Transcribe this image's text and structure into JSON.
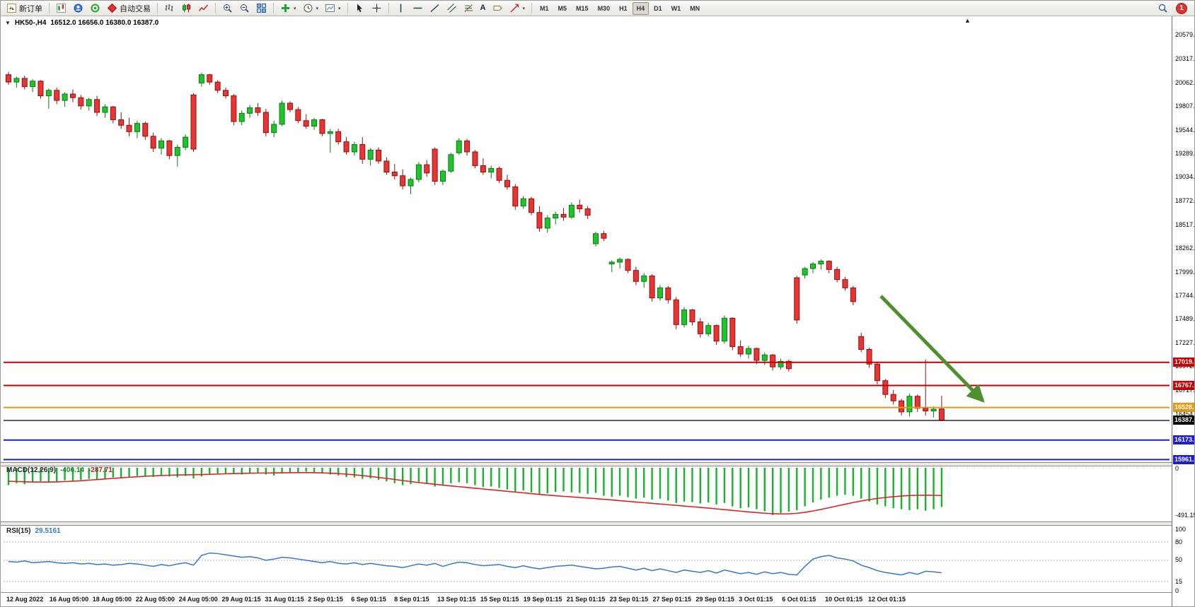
{
  "toolbar": {
    "new_order": "新订单",
    "auto_trading": "自动交易",
    "timeframes": [
      "M1",
      "M5",
      "M15",
      "M30",
      "H1",
      "H4",
      "D1",
      "W1",
      "MN"
    ],
    "active_timeframe": "H4",
    "notification_count": "1"
  },
  "icons": {
    "collapse": "▼",
    "shift_marker": "▲",
    "caret": "▾",
    "text_tool": "A"
  },
  "chart": {
    "symbol_period": "HK50-,H4",
    "ohlc": "16512.0 16656.0 16380.0 16387.0"
  },
  "price_axis_labels": [
    "20579.5",
    "20317.0",
    "20062.0",
    "19807.0",
    "19544.5",
    "19289.5",
    "19034.5",
    "18772.0",
    "18517.0",
    "18262.0",
    "17999.5",
    "17744.5",
    "17489.5",
    "17227.0",
    "16972.0",
    "16717.0",
    "16454.5"
  ],
  "price_lines": [
    {
      "label": "17019.7",
      "price": 17019.7,
      "color": "#c40000",
      "width": 2
    },
    {
      "label": "16767.5",
      "price": 16767.5,
      "color": "#c40000",
      "width": 2
    },
    {
      "label": "16528.6",
      "price": 16528.6,
      "color": "#e5980f",
      "width": 2
    },
    {
      "label": "16387.0",
      "price": 16387.0,
      "color": "#000000",
      "width": 1.2
    },
    {
      "label": "16173.7",
      "price": 16173.7,
      "color": "#1d1dd0",
      "width": 2
    },
    {
      "label": "15961.0",
      "price": 15961.0,
      "color": "#1d1dd0",
      "width": 2
    }
  ],
  "chart_data": {
    "type": "candlestick",
    "symbol": "HK50-",
    "period": "H4",
    "ylim": [
      15910,
      20740
    ],
    "up_color": "#1fc32a",
    "down_color": "#e93434",
    "candles": [
      [
        20150,
        20180,
        20040,
        20070
      ],
      [
        20070,
        20130,
        20010,
        20110
      ],
      [
        20110,
        20140,
        19990,
        20020
      ],
      [
        20020,
        20100,
        19960,
        20080
      ],
      [
        20080,
        20090,
        19890,
        19920
      ],
      [
        19920,
        20000,
        19780,
        19980
      ],
      [
        19980,
        20010,
        19830,
        19870
      ],
      [
        19870,
        19960,
        19800,
        19940
      ],
      [
        19940,
        19990,
        19850,
        19900
      ],
      [
        19900,
        19930,
        19770,
        19810
      ],
      [
        19810,
        19900,
        19760,
        19880
      ],
      [
        19880,
        19920,
        19700,
        19740
      ],
      [
        19740,
        19830,
        19680,
        19800
      ],
      [
        19800,
        19810,
        19620,
        19660
      ],
      [
        19660,
        19740,
        19560,
        19600
      ],
      [
        19600,
        19680,
        19480,
        19530
      ],
      [
        19530,
        19650,
        19460,
        19620
      ],
      [
        19620,
        19640,
        19440,
        19480
      ],
      [
        19480,
        19520,
        19310,
        19350
      ],
      [
        19350,
        19460,
        19280,
        19430
      ],
      [
        19430,
        19440,
        19230,
        19270
      ],
      [
        19270,
        19390,
        19150,
        19360
      ],
      [
        19360,
        19500,
        19330,
        19470
      ],
      [
        19930,
        19950,
        19310,
        19340
      ],
      [
        20060,
        20170,
        20020,
        20150
      ],
      [
        20150,
        20160,
        20040,
        20070
      ],
      [
        20070,
        20090,
        19950,
        19980
      ],
      [
        19980,
        20010,
        19890,
        19920
      ],
      [
        19920,
        19940,
        19600,
        19640
      ],
      [
        19640,
        19760,
        19600,
        19730
      ],
      [
        19730,
        19820,
        19680,
        19790
      ],
      [
        19790,
        19840,
        19700,
        19740
      ],
      [
        19740,
        19780,
        19480,
        19520
      ],
      [
        19520,
        19650,
        19470,
        19610
      ],
      [
        19610,
        19870,
        19590,
        19840
      ],
      [
        19840,
        19860,
        19740,
        19770
      ],
      [
        19770,
        19800,
        19620,
        19650
      ],
      [
        19650,
        19720,
        19560,
        19590
      ],
      [
        19590,
        19680,
        19550,
        19660
      ],
      [
        19660,
        19670,
        19480,
        19510
      ],
      [
        19510,
        19560,
        19300,
        19530
      ],
      [
        19530,
        19560,
        19390,
        19420
      ],
      [
        19420,
        19470,
        19280,
        19310
      ],
      [
        19310,
        19420,
        19270,
        19390
      ],
      [
        19390,
        19470,
        19180,
        19230
      ],
      [
        19230,
        19350,
        19160,
        19330
      ],
      [
        19330,
        19360,
        19180,
        19210
      ],
      [
        19210,
        19250,
        19060,
        19090
      ],
      [
        19090,
        19180,
        19010,
        19050
      ],
      [
        19050,
        19120,
        18900,
        18940
      ],
      [
        18940,
        19030,
        18850,
        19010
      ],
      [
        19010,
        19200,
        18980,
        19170
      ],
      [
        19170,
        19220,
        19040,
        19080
      ],
      [
        19340,
        19360,
        18950,
        18990
      ],
      [
        18990,
        19120,
        18950,
        19100
      ],
      [
        19100,
        19300,
        19080,
        19280
      ],
      [
        19300,
        19460,
        19280,
        19430
      ],
      [
        19430,
        19450,
        19270,
        19310
      ],
      [
        19310,
        19330,
        19130,
        19160
      ],
      [
        19160,
        19240,
        19060,
        19090
      ],
      [
        19090,
        19160,
        19020,
        19130
      ],
      [
        19130,
        19150,
        18970,
        19000
      ],
      [
        19000,
        19060,
        18900,
        18930
      ],
      [
        18930,
        18960,
        18680,
        18720
      ],
      [
        18720,
        18830,
        18690,
        18800
      ],
      [
        18800,
        18820,
        18620,
        18650
      ],
      [
        18650,
        18720,
        18440,
        18480
      ],
      [
        18480,
        18620,
        18430,
        18590
      ],
      [
        18590,
        18660,
        18520,
        18630
      ],
      [
        18630,
        18700,
        18560,
        18600
      ],
      [
        18600,
        18760,
        18580,
        18730
      ],
      [
        18730,
        18790,
        18650,
        18690
      ],
      [
        18690,
        18720,
        18580,
        18620
      ],
      [
        18310,
        18440,
        18280,
        18420
      ],
      [
        18420,
        18450,
        18340,
        18370
      ],
      [
        18090,
        18130,
        18000,
        18110
      ],
      [
        18110,
        18160,
        18040,
        18140
      ],
      [
        18140,
        18150,
        17990,
        18020
      ],
      [
        18020,
        18060,
        17860,
        17900
      ],
      [
        17900,
        17990,
        17830,
        17960
      ],
      [
        17960,
        17980,
        17680,
        17720
      ],
      [
        17720,
        17860,
        17690,
        17830
      ],
      [
        17830,
        17850,
        17660,
        17700
      ],
      [
        17700,
        17730,
        17380,
        17430
      ],
      [
        17430,
        17620,
        17400,
        17590
      ],
      [
        17590,
        17600,
        17420,
        17460
      ],
      [
        17460,
        17500,
        17290,
        17330
      ],
      [
        17330,
        17450,
        17300,
        17420
      ],
      [
        17420,
        17430,
        17210,
        17250
      ],
      [
        17250,
        17530,
        17220,
        17500
      ],
      [
        17500,
        17510,
        17150,
        17190
      ],
      [
        17190,
        17260,
        17080,
        17110
      ],
      [
        17110,
        17200,
        17060,
        17170
      ],
      [
        17170,
        17180,
        17000,
        17040
      ],
      [
        17040,
        17130,
        16990,
        17100
      ],
      [
        17100,
        17110,
        16930,
        16970
      ],
      [
        16970,
        17060,
        16940,
        17030
      ],
      [
        17030,
        17050,
        16920,
        16950
      ],
      [
        17940,
        17960,
        17440,
        17480
      ],
      [
        17970,
        18060,
        17930,
        18040
      ],
      [
        18040,
        18110,
        17990,
        18090
      ],
      [
        18090,
        18140,
        18030,
        18120
      ],
      [
        18120,
        18130,
        17990,
        18030
      ],
      [
        18030,
        18060,
        17890,
        17920
      ],
      [
        17920,
        17950,
        17800,
        17830
      ],
      [
        17830,
        17850,
        17640,
        17680
      ],
      [
        17300,
        17340,
        17130,
        17160
      ],
      [
        17160,
        17180,
        16960,
        17000
      ],
      [
        17000,
        17030,
        16780,
        16820
      ],
      [
        16820,
        16840,
        16630,
        16670
      ],
      [
        16670,
        16720,
        16560,
        16600
      ],
      [
        16600,
        16620,
        16440,
        16480
      ],
      [
        16480,
        16680,
        16430,
        16650
      ],
      [
        16650,
        16670,
        16480,
        16520
      ],
      [
        16520,
        17050,
        16440,
        16490
      ],
      [
        16490,
        16540,
        16420,
        16510
      ],
      [
        16512,
        16656,
        16380,
        16387
      ]
    ],
    "time_labels": [
      "12 Aug 2022",
      "16 Aug 05:00",
      "18 Aug 05:00",
      "22 Aug 05:00",
      "24 Aug 05:00",
      "29 Aug 01:15",
      "31 Aug 01:15",
      "2 Sep 01:15",
      "6 Sep 01:15",
      "8 Sep 01:15",
      "13 Sep 01:15",
      "15 Sep 01:15",
      "19 Sep 01:15",
      "21 Sep 01:15",
      "23 Sep 01:15",
      "27 Sep 01:15",
      "29 Sep 01:15",
      "3 Oct 01:15",
      "6 Oct 01:15",
      "10 Oct 01:15",
      "12 Oct 01:15"
    ],
    "macd": {
      "name": "MACD(12,26,9)",
      "value": "-406.14",
      "signal_value": "-287.71",
      "scale_max": "0",
      "scale_min": "-491.15",
      "color": "#18b32c",
      "signal_color": "#e02222",
      "histogram": [
        -180,
        -160,
        -170,
        -150,
        -140,
        -155,
        -145,
        -130,
        -140,
        -125,
        -115,
        -120,
        -110,
        -100,
        -105,
        -95,
        -85,
        -90,
        -95,
        -80,
        -90,
        -100,
        -85,
        -110,
        -90,
        -70,
        -60,
        -55,
        -65,
        -70,
        -60,
        -55,
        -70,
        -80,
        -60,
        -50,
        -45,
        -40,
        -45,
        -55,
        -70,
        -80,
        -95,
        -100,
        -115,
        -110,
        -125,
        -140,
        -160,
        -180,
        -170,
        -155,
        -165,
        -195,
        -180,
        -160,
        -150,
        -160,
        -180,
        -200,
        -195,
        -210,
        -225,
        -250,
        -235,
        -255,
        -280,
        -265,
        -250,
        -245,
        -255,
        -260,
        -270,
        -260,
        -290,
        -300,
        -290,
        -305,
        -320,
        -310,
        -330,
        -320,
        -340,
        -365,
        -350,
        -355,
        -370,
        -360,
        -380,
        -365,
        -400,
        -420,
        -410,
        -430,
        -450,
        -490,
        -470,
        -455,
        -440,
        -400,
        -360,
        -330,
        -310,
        -290,
        -280,
        -290,
        -320,
        -350,
        -380,
        -400,
        -420,
        -430,
        -440,
        -430,
        -445,
        -430,
        -406.14
      ],
      "signal": [
        -140,
        -142,
        -145,
        -147,
        -148,
        -148,
        -146,
        -143,
        -139,
        -134,
        -128,
        -122,
        -116,
        -110,
        -104,
        -98,
        -93,
        -88,
        -84,
        -80,
        -77,
        -75,
        -73,
        -72,
        -70,
        -68,
        -65,
        -62,
        -60,
        -58,
        -56,
        -55,
        -54,
        -53,
        -52,
        -51,
        -50,
        -50,
        -51,
        -53,
        -56,
        -60,
        -66,
        -73,
        -81,
        -90,
        -100,
        -110,
        -121,
        -132,
        -143,
        -153,
        -162,
        -171,
        -180,
        -188,
        -196,
        -204,
        -212,
        -220,
        -228,
        -236,
        -244,
        -252,
        -260,
        -268,
        -276,
        -283,
        -290,
        -296,
        -302,
        -308,
        -314,
        -320,
        -327,
        -334,
        -341,
        -348,
        -355,
        -362,
        -369,
        -376,
        -383,
        -390,
        -397,
        -404,
        -411,
        -418,
        -426,
        -434,
        -442,
        -450,
        -458,
        -465,
        -471,
        -476,
        -479,
        -478,
        -472,
        -462,
        -448,
        -432,
        -414,
        -396,
        -378,
        -360,
        -344,
        -330,
        -318,
        -308,
        -300,
        -293,
        -288,
        -285,
        -284,
        -285,
        -287.71
      ]
    },
    "rsi": {
      "name": "RSI(15)",
      "value": "29.5161",
      "color": "#3578c8",
      "levels": [
        "100",
        "80",
        "50",
        "15",
        "0"
      ],
      "level_lines": [
        80,
        50,
        15
      ],
      "values": [
        48,
        47,
        49,
        46,
        47,
        48,
        46,
        45,
        46,
        44,
        45,
        43,
        44,
        42,
        43,
        45,
        44,
        42,
        40,
        43,
        41,
        44,
        46,
        42,
        58,
        62,
        61,
        59,
        57,
        55,
        56,
        54,
        50,
        52,
        55,
        54,
        52,
        50,
        48,
        46,
        48,
        45,
        44,
        46,
        43,
        45,
        43,
        41,
        40,
        38,
        41,
        44,
        42,
        45,
        40,
        44,
        47,
        46,
        43,
        41,
        42,
        43,
        40,
        38,
        41,
        38,
        36,
        38,
        40,
        41,
        42,
        40,
        38,
        36,
        37,
        39,
        40,
        37,
        34,
        37,
        33,
        36,
        33,
        30,
        34,
        32,
        30,
        33,
        29,
        34,
        31,
        28,
        30,
        27,
        31,
        28,
        30,
        27,
        26,
        40,
        52,
        56,
        58,
        54,
        52,
        49,
        42,
        38,
        33,
        30,
        28,
        26,
        30,
        27,
        32,
        31,
        29.5161
      ]
    },
    "annotation_arrow": {
      "from": [
        1244,
        418
      ],
      "to": [
        1388,
        566
      ],
      "color": "#4e8f2e",
      "width": 5
    }
  }
}
